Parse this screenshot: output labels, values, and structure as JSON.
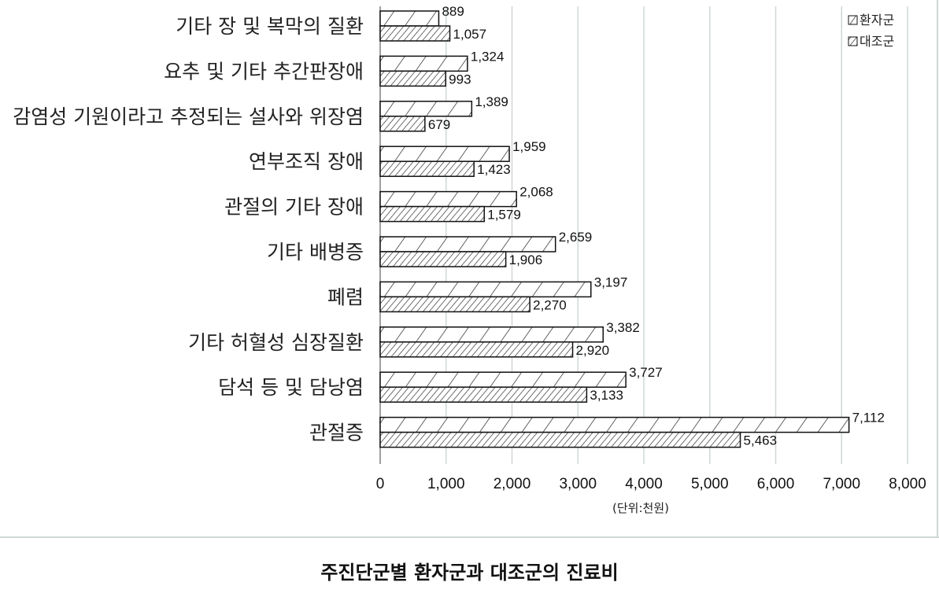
{
  "caption": "주진단군별 환자군과 대조군의 진료비",
  "chart_data": {
    "type": "bar",
    "orientation": "horizontal",
    "title": "",
    "xlabel": "(단위:천원)",
    "ylabel": "",
    "xlim": [
      0,
      8000
    ],
    "ticks": [
      "0",
      "1,000",
      "2,000",
      "3,000",
      "4,000",
      "5,000",
      "6,000",
      "7,000",
      "8,000"
    ],
    "tick_values": [
      0,
      1000,
      2000,
      3000,
      4000,
      5000,
      6000,
      7000,
      8000
    ],
    "grid": true,
    "legend_position": "top-right",
    "categories": [
      "기타 장 및 복막의 질환",
      "요추 및 기타 추간판장애",
      "감염성 기원이라고 추정되는 설사와 위장염",
      "연부조직 장애",
      "관절의 기타 장애",
      "기타 배병증",
      "폐렴",
      "기타 허혈성 심장질환",
      "담석 등 및 담낭염",
      "관절증"
    ],
    "series": [
      {
        "name": "환자군",
        "pattern": "wide-hatch",
        "values": [
          889,
          1324,
          1389,
          1959,
          2068,
          2659,
          3197,
          3382,
          3727,
          7112
        ],
        "labels": [
          "889",
          "1,324",
          "1,389",
          "1,959",
          "2,068",
          "2,659",
          "3,197",
          "3,382",
          "3,727",
          "7,112"
        ]
      },
      {
        "name": "대조군",
        "pattern": "dense-hatch",
        "values": [
          1057,
          993,
          679,
          1423,
          1579,
          1906,
          2270,
          2920,
          3133,
          5463
        ],
        "labels": [
          "1,057",
          "993",
          "679",
          "1,423",
          "1,579",
          "1,906",
          "2,270",
          "2,920",
          "3,133",
          "5,463"
        ]
      }
    ],
    "colors": {
      "bar_stroke": "#111111",
      "grid": "#cfd8d4",
      "frame": "#cfd8d4"
    }
  }
}
